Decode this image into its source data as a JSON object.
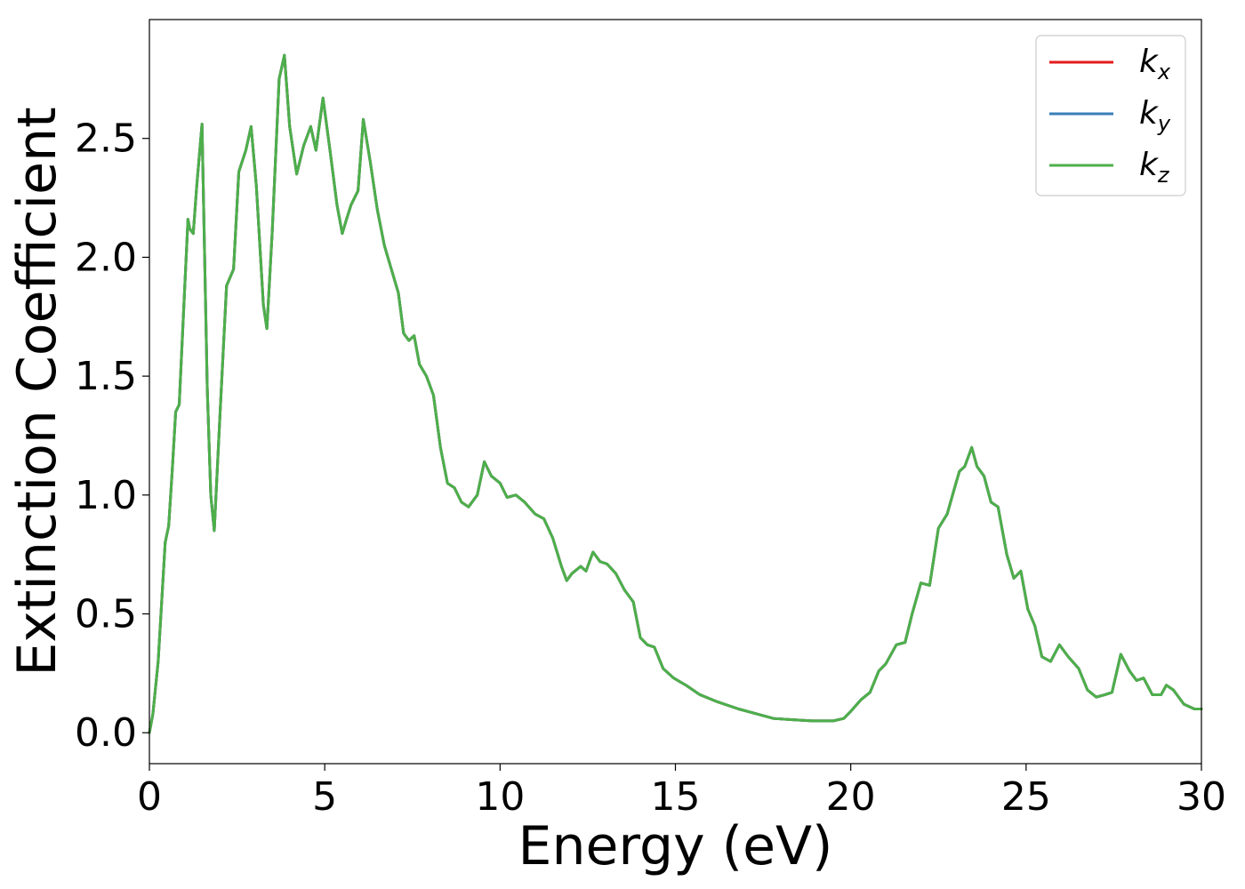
{
  "chart_data": {
    "type": "line",
    "title": "",
    "xlabel": "Energy (eV)",
    "ylabel": "Extinction Coefficient",
    "xlim": [
      0,
      30
    ],
    "ylim": [
      -0.13,
      3.0
    ],
    "xticks": [
      0,
      5,
      10,
      15,
      20,
      25,
      30
    ],
    "yticks": [
      0.0,
      0.5,
      1.0,
      1.5,
      2.0,
      2.5
    ],
    "xtick_labels": [
      "0",
      "5",
      "10",
      "15",
      "20",
      "25",
      "30"
    ],
    "ytick_labels": [
      "0.0",
      "0.5",
      "1.0",
      "1.5",
      "2.0",
      "2.5"
    ],
    "grid": false,
    "legend_position": "top-right",
    "colors": {
      "kx": "#e41a1c",
      "ky": "#377eb8",
      "kz": "#4daf4a"
    },
    "x": [
      0,
      0.1,
      0.25,
      0.35,
      0.45,
      0.55,
      0.65,
      0.75,
      0.85,
      1.0,
      1.1,
      1.15,
      1.25,
      1.35,
      1.5,
      1.65,
      1.75,
      1.85,
      2.0,
      2.2,
      2.4,
      2.55,
      2.75,
      2.9,
      3.05,
      3.25,
      3.35,
      3.5,
      3.7,
      3.85,
      4.0,
      4.2,
      4.4,
      4.6,
      4.75,
      4.95,
      5.15,
      5.35,
      5.5,
      5.6,
      5.75,
      5.95,
      6.1,
      6.3,
      6.5,
      6.7,
      6.9,
      7.1,
      7.25,
      7.4,
      7.55,
      7.7,
      7.9,
      8.1,
      8.3,
      8.5,
      8.7,
      8.9,
      9.1,
      9.35,
      9.55,
      9.75,
      10.0,
      10.2,
      10.45,
      10.7,
      11.0,
      11.25,
      11.5,
      11.75,
      11.9,
      12.05,
      12.3,
      12.45,
      12.65,
      12.85,
      13.05,
      13.3,
      13.55,
      13.8,
      14.0,
      14.2,
      14.4,
      14.65,
      14.95,
      15.3,
      15.7,
      16.2,
      16.8,
      17.3,
      17.8,
      18.3,
      18.9,
      19.5,
      19.8,
      20.0,
      20.3,
      20.55,
      20.8,
      21.0,
      21.3,
      21.55,
      21.75,
      22.0,
      22.25,
      22.5,
      22.75,
      23.0,
      23.1,
      23.25,
      23.45,
      23.6,
      23.8,
      24.0,
      24.2,
      24.45,
      24.65,
      24.85,
      25.05,
      25.25,
      25.45,
      25.7,
      25.95,
      26.2,
      26.5,
      26.75,
      27.0,
      27.25,
      27.45,
      27.7,
      27.95,
      28.15,
      28.35,
      28.6,
      28.85,
      29.0,
      29.2,
      29.5,
      29.8,
      30.0
    ],
    "series": [
      {
        "name": "k_x",
        "values": [
          0.0,
          0.08,
          0.3,
          0.55,
          0.8,
          0.87,
          1.1,
          1.35,
          1.38,
          1.85,
          2.16,
          2.12,
          2.1,
          2.3,
          2.56,
          1.45,
          1.0,
          0.85,
          1.3,
          1.88,
          1.95,
          2.36,
          2.45,
          2.55,
          2.3,
          1.8,
          1.7,
          2.1,
          2.75,
          2.85,
          2.55,
          2.35,
          2.47,
          2.55,
          2.45,
          2.67,
          2.45,
          2.22,
          2.1,
          2.15,
          2.22,
          2.28,
          2.58,
          2.4,
          2.2,
          2.05,
          1.95,
          1.85,
          1.68,
          1.65,
          1.67,
          1.55,
          1.5,
          1.42,
          1.2,
          1.05,
          1.03,
          0.97,
          0.95,
          1.0,
          1.14,
          1.08,
          1.05,
          0.99,
          1.0,
          0.97,
          0.92,
          0.9,
          0.82,
          0.7,
          0.64,
          0.67,
          0.7,
          0.68,
          0.76,
          0.72,
          0.71,
          0.67,
          0.6,
          0.55,
          0.4,
          0.37,
          0.36,
          0.27,
          0.23,
          0.2,
          0.16,
          0.13,
          0.1,
          0.08,
          0.06,
          0.055,
          0.05,
          0.05,
          0.06,
          0.09,
          0.14,
          0.17,
          0.26,
          0.29,
          0.37,
          0.38,
          0.5,
          0.63,
          0.62,
          0.86,
          0.92,
          1.05,
          1.1,
          1.12,
          1.2,
          1.12,
          1.08,
          0.97,
          0.95,
          0.75,
          0.65,
          0.68,
          0.52,
          0.45,
          0.32,
          0.3,
          0.37,
          0.32,
          0.27,
          0.18,
          0.15,
          0.16,
          0.17,
          0.33,
          0.26,
          0.22,
          0.23,
          0.16,
          0.16,
          0.2,
          0.18,
          0.12,
          0.1,
          0.1
        ]
      },
      {
        "name": "k_y",
        "values": [
          0.0,
          0.08,
          0.3,
          0.55,
          0.8,
          0.87,
          1.1,
          1.35,
          1.38,
          1.85,
          2.16,
          2.12,
          2.1,
          2.3,
          2.56,
          1.45,
          1.0,
          0.85,
          1.3,
          1.88,
          1.95,
          2.36,
          2.45,
          2.55,
          2.3,
          1.8,
          1.7,
          2.1,
          2.75,
          2.85,
          2.55,
          2.35,
          2.47,
          2.55,
          2.45,
          2.67,
          2.45,
          2.22,
          2.1,
          2.15,
          2.22,
          2.28,
          2.58,
          2.4,
          2.2,
          2.05,
          1.95,
          1.85,
          1.68,
          1.65,
          1.67,
          1.55,
          1.5,
          1.42,
          1.2,
          1.05,
          1.03,
          0.97,
          0.95,
          1.0,
          1.14,
          1.08,
          1.05,
          0.99,
          1.0,
          0.97,
          0.92,
          0.9,
          0.82,
          0.7,
          0.64,
          0.67,
          0.7,
          0.68,
          0.76,
          0.72,
          0.71,
          0.67,
          0.6,
          0.55,
          0.4,
          0.37,
          0.36,
          0.27,
          0.23,
          0.2,
          0.16,
          0.13,
          0.1,
          0.08,
          0.06,
          0.055,
          0.05,
          0.05,
          0.06,
          0.09,
          0.14,
          0.17,
          0.26,
          0.29,
          0.37,
          0.38,
          0.5,
          0.63,
          0.62,
          0.86,
          0.92,
          1.05,
          1.1,
          1.12,
          1.2,
          1.12,
          1.08,
          0.97,
          0.95,
          0.75,
          0.65,
          0.68,
          0.52,
          0.45,
          0.32,
          0.3,
          0.37,
          0.32,
          0.27,
          0.18,
          0.15,
          0.16,
          0.17,
          0.33,
          0.26,
          0.22,
          0.23,
          0.16,
          0.16,
          0.2,
          0.18,
          0.12,
          0.1,
          0.1
        ]
      },
      {
        "name": "k_z",
        "values": [
          0.0,
          0.08,
          0.3,
          0.55,
          0.8,
          0.87,
          1.1,
          1.35,
          1.38,
          1.85,
          2.16,
          2.12,
          2.1,
          2.3,
          2.56,
          1.45,
          1.0,
          0.85,
          1.3,
          1.88,
          1.95,
          2.36,
          2.45,
          2.55,
          2.3,
          1.8,
          1.7,
          2.1,
          2.75,
          2.85,
          2.55,
          2.35,
          2.47,
          2.55,
          2.45,
          2.67,
          2.45,
          2.22,
          2.1,
          2.15,
          2.22,
          2.28,
          2.58,
          2.4,
          2.2,
          2.05,
          1.95,
          1.85,
          1.68,
          1.65,
          1.67,
          1.55,
          1.5,
          1.42,
          1.2,
          1.05,
          1.03,
          0.97,
          0.95,
          1.0,
          1.14,
          1.08,
          1.05,
          0.99,
          1.0,
          0.97,
          0.92,
          0.9,
          0.82,
          0.7,
          0.64,
          0.67,
          0.7,
          0.68,
          0.76,
          0.72,
          0.71,
          0.67,
          0.6,
          0.55,
          0.4,
          0.37,
          0.36,
          0.27,
          0.23,
          0.2,
          0.16,
          0.13,
          0.1,
          0.08,
          0.06,
          0.055,
          0.05,
          0.05,
          0.06,
          0.09,
          0.14,
          0.17,
          0.26,
          0.29,
          0.37,
          0.38,
          0.5,
          0.63,
          0.62,
          0.86,
          0.92,
          1.05,
          1.1,
          1.12,
          1.2,
          1.12,
          1.08,
          0.97,
          0.95,
          0.75,
          0.65,
          0.68,
          0.52,
          0.45,
          0.32,
          0.3,
          0.37,
          0.32,
          0.27,
          0.18,
          0.15,
          0.16,
          0.17,
          0.33,
          0.26,
          0.22,
          0.23,
          0.16,
          0.16,
          0.2,
          0.18,
          0.12,
          0.1,
          0.1
        ]
      }
    ],
    "legend": [
      {
        "base": "k",
        "sub": "x",
        "color_key": "kx"
      },
      {
        "base": "k",
        "sub": "y",
        "color_key": "ky"
      },
      {
        "base": "k",
        "sub": "z",
        "color_key": "kz"
      }
    ]
  }
}
